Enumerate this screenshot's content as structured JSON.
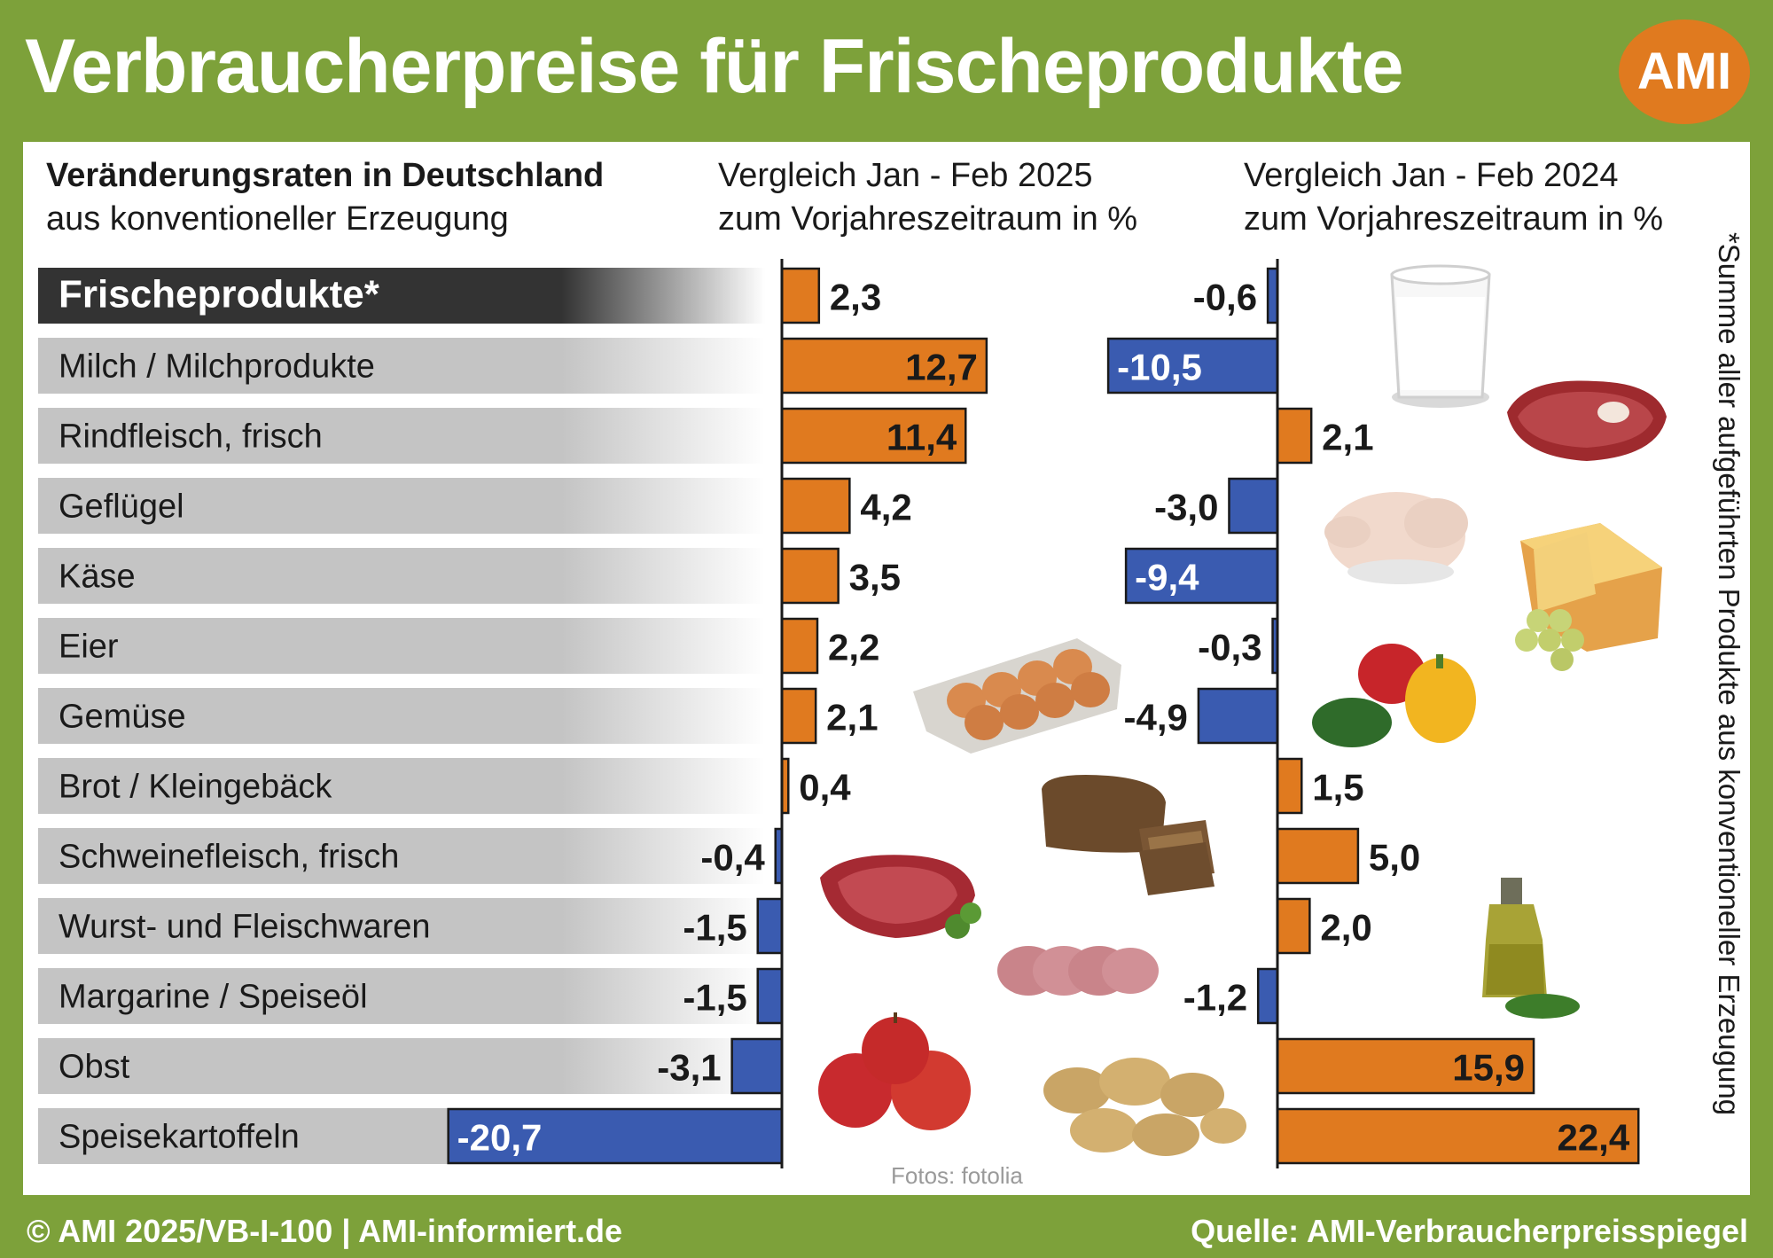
{
  "title": "Verbraucherpreise für Frischeprodukte",
  "logo_text": "AMI",
  "header": {
    "label_bold": "Veränderungsraten in Deutschland",
    "label_sub": "aus konventioneller Erzeugung",
    "col1_line1": "Vergleich Jan - Feb 2025",
    "col1_line2": "zum Vorjahreszeitraum in %",
    "col2_line1": "Vergleich Jan - Feb 2024",
    "col2_line2": "zum Vorjahreszeitraum in %"
  },
  "footnote": "*Summe aller aufgeführten  Produkte aus konventioneller Erzeugung",
  "photo_credit": "Fotos: fotolia",
  "footer": {
    "left": "© AMI 2025/VB-I-100 | AMI-informiert.de",
    "right": "Quelle: AMI-Verbraucherpreisspiegel"
  },
  "colors": {
    "positive": "#e07a1f",
    "negative": "#3a5bb0",
    "frame": "#7da13a",
    "label_band": "#c6c6c6",
    "first_label_band": "#333333"
  },
  "images": [
    "milk-glass-icon",
    "beef-steak-icon",
    "chicken-icon",
    "cheese-grapes-icon",
    "eggs-carton-icon",
    "peppers-icon",
    "bread-icon",
    "raw-meat-icon",
    "salami-slices-icon",
    "oil-bottle-icon",
    "apples-icon",
    "potatoes-icon"
  ],
  "chart_data": {
    "type": "bar",
    "orientation": "horizontal",
    "categories": [
      "Frischeprodukte*",
      "Milch / Milchprodukte",
      "Rindfleisch, frisch",
      "Geflügel",
      "Käse",
      "Eier",
      "Gemüse",
      "Brot / Kleingebäck",
      "Schweinefleisch, frisch",
      "Wurst- und Fleischwaren",
      "Margarine / Speiseöl",
      "Obst",
      "Speisekartoffeln"
    ],
    "series": [
      {
        "name": "Vergleich Jan - Feb 2025 zum Vorjahreszeitraum in %",
        "values": [
          2.3,
          12.7,
          11.4,
          4.2,
          3.5,
          2.2,
          2.1,
          0.4,
          -0.4,
          -1.5,
          -1.5,
          -3.1,
          -20.7
        ]
      },
      {
        "name": "Vergleich Jan - Feb 2024 zum Vorjahreszeitraum in %",
        "values": [
          -0.6,
          -10.5,
          2.1,
          -3.0,
          -9.4,
          -0.3,
          -4.9,
          1.5,
          5.0,
          2.0,
          -1.2,
          15.9,
          22.4
        ]
      }
    ],
    "value_labels": [
      [
        "2,3",
        "12,7",
        "11,4",
        "4,2",
        "3,5",
        "2,2",
        "2,1",
        "0,4",
        "-0,4",
        "-1,5",
        "-1,5",
        "-3,1",
        "-20,7"
      ],
      [
        "-0,6",
        "-10,5",
        "2,1",
        "-3,0",
        "-9,4",
        "-0,3",
        "-4,9",
        "1,5",
        "5,0",
        "2,0",
        "-1,2",
        "15,9",
        "22,4"
      ]
    ],
    "grid": false,
    "legend": "none"
  }
}
